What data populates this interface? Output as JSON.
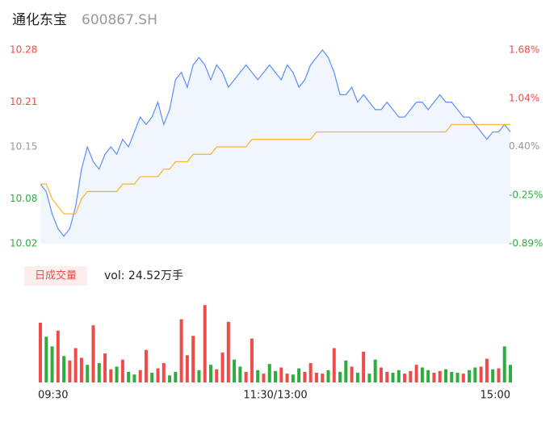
{
  "chart_data": {
    "type": "intraday",
    "title": "通化东宝",
    "subtitle": "600867.SH",
    "x": [
      0,
      1,
      2,
      3,
      4,
      5,
      6,
      7,
      8,
      9,
      10,
      11,
      12,
      13,
      14,
      15,
      16,
      17,
      18,
      19,
      20,
      21,
      22,
      23,
      24,
      25,
      26,
      27,
      28,
      29,
      30,
      31,
      32,
      33,
      34,
      35,
      36,
      37,
      38,
      39,
      40,
      41,
      42,
      43,
      44,
      45,
      46,
      47,
      48,
      49,
      50,
      51,
      52,
      53,
      54,
      55,
      56,
      57,
      58,
      59,
      60,
      61,
      62,
      63,
      64,
      65,
      66,
      67,
      68,
      69,
      70,
      71,
      72,
      73,
      74,
      75,
      76,
      77,
      78,
      79,
      80
    ],
    "xlim": [
      0,
      80
    ],
    "xticks": [
      {
        "value": 0,
        "label": "09:30"
      },
      {
        "value": 40,
        "label": "11:30/13:00"
      },
      {
        "value": 80,
        "label": "15:00"
      }
    ],
    "series": [
      {
        "name": "price",
        "color": "#5b8ff9",
        "values": [
          10.1,
          10.09,
          10.06,
          10.04,
          10.03,
          10.04,
          10.07,
          10.12,
          10.15,
          10.13,
          10.12,
          10.14,
          10.15,
          10.14,
          10.16,
          10.15,
          10.17,
          10.19,
          10.18,
          10.19,
          10.21,
          10.18,
          10.2,
          10.24,
          10.25,
          10.23,
          10.26,
          10.27,
          10.26,
          10.24,
          10.26,
          10.25,
          10.23,
          10.24,
          10.25,
          10.26,
          10.25,
          10.24,
          10.25,
          10.26,
          10.25,
          10.24,
          10.26,
          10.25,
          10.23,
          10.24,
          10.26,
          10.27,
          10.28,
          10.27,
          10.25,
          10.22,
          10.22,
          10.23,
          10.21,
          10.22,
          10.21,
          10.2,
          10.2,
          10.21,
          10.2,
          10.19,
          10.19,
          10.2,
          10.21,
          10.21,
          10.2,
          10.21,
          10.22,
          10.21,
          10.21,
          10.2,
          10.19,
          10.19,
          10.18,
          10.17,
          10.16,
          10.17,
          10.17,
          10.18,
          10.17
        ]
      },
      {
        "name": "average",
        "color": "#f5b324",
        "values": [
          10.1,
          10.1,
          10.08,
          10.07,
          10.06,
          10.06,
          10.06,
          10.08,
          10.09,
          10.09,
          10.09,
          10.09,
          10.09,
          10.09,
          10.1,
          10.1,
          10.1,
          10.11,
          10.11,
          10.11,
          10.11,
          10.12,
          10.12,
          10.13,
          10.13,
          10.13,
          10.14,
          10.14,
          10.14,
          10.14,
          10.15,
          10.15,
          10.15,
          10.15,
          10.15,
          10.15,
          10.16,
          10.16,
          10.16,
          10.16,
          10.16,
          10.16,
          10.16,
          10.16,
          10.16,
          10.16,
          10.16,
          10.17,
          10.17,
          10.17,
          10.17,
          10.17,
          10.17,
          10.17,
          10.17,
          10.17,
          10.17,
          10.17,
          10.17,
          10.17,
          10.17,
          10.17,
          10.17,
          10.17,
          10.17,
          10.17,
          10.17,
          10.17,
          10.17,
          10.17,
          10.18,
          10.18,
          10.18,
          10.18,
          10.18,
          10.18,
          10.18,
          10.18,
          10.18,
          10.18,
          10.18
        ]
      }
    ],
    "ylim": [
      10.02,
      10.28
    ],
    "yticks": [
      10.28,
      10.21,
      10.15,
      10.08,
      10.02
    ],
    "y2lim": [
      -0.89,
      1.68
    ],
    "y2ticks": [
      {
        "value": 1.68,
        "label": "1.68%"
      },
      {
        "value": 1.04,
        "label": "1.04%"
      },
      {
        "value": 0.4,
        "label": "0.40%"
      },
      {
        "value": -0.25,
        "label": "-0.25%"
      },
      {
        "value": -0.89,
        "label": "-0.89%"
      }
    ],
    "up_color": "#ef4b4b",
    "down_color": "#2ead3f",
    "flat_color": "#999999",
    "volume": {
      "title": "日成交量",
      "label": "vol: 24.52万手",
      "ylim": [
        0,
        9000
      ],
      "values": [
        6800,
        5200,
        4100,
        5900,
        3000,
        2500,
        3900,
        2800,
        2000,
        6500,
        2200,
        3300,
        1500,
        1800,
        2600,
        1200,
        900,
        1400,
        3700,
        1100,
        1600,
        2200,
        800,
        1200,
        7200,
        3100,
        5300,
        1400,
        8800,
        2000,
        1500,
        3400,
        6900,
        2600,
        1800,
        1200,
        5000,
        1400,
        1000,
        2100,
        1300,
        1700,
        1000,
        900,
        1600,
        1200,
        2200,
        1100,
        1000,
        1400,
        3900,
        1200,
        2500,
        1800,
        1100,
        3500,
        1000,
        2600,
        1700,
        1200,
        1100,
        1400,
        1000,
        1300,
        2000,
        1700,
        1400,
        1100,
        1300,
        1500,
        1200,
        1100,
        1000,
        1400,
        1700,
        1800,
        2700,
        1500,
        1600,
        4100,
        2000
      ],
      "up": [
        true,
        false,
        false,
        true,
        false,
        true,
        true,
        true,
        false,
        true,
        false,
        true,
        true,
        false,
        true,
        false,
        false,
        true,
        true,
        false,
        true,
        true,
        false,
        false,
        true,
        true,
        true,
        false,
        true,
        false,
        true,
        true,
        true,
        false,
        false,
        true,
        true,
        false,
        true,
        false,
        false,
        true,
        true,
        false,
        false,
        true,
        true,
        true,
        true,
        false,
        true,
        false,
        false,
        true,
        false,
        true,
        false,
        false,
        true,
        true,
        false,
        false,
        true,
        true,
        true,
        false,
        false,
        true,
        true,
        false,
        false,
        false,
        true,
        false,
        false,
        true,
        true,
        false,
        true,
        false,
        false
      ]
    }
  }
}
